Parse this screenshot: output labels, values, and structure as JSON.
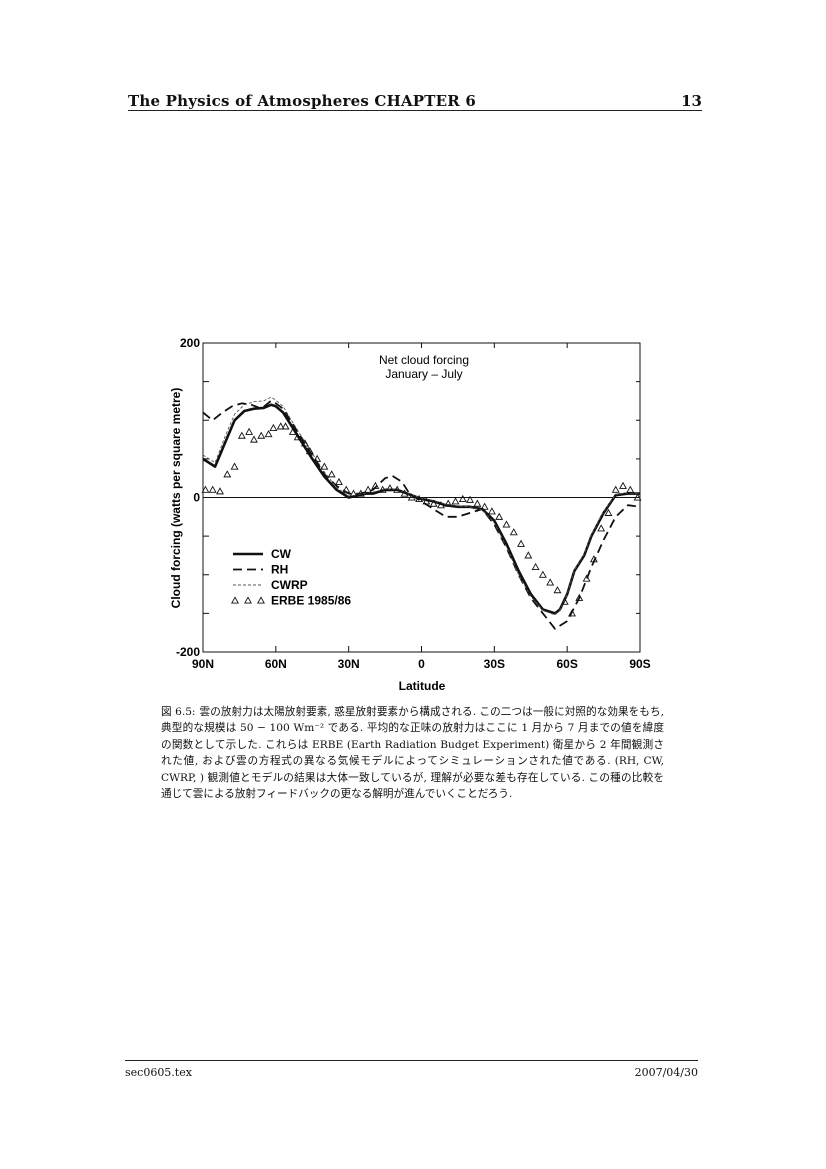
{
  "header": {
    "title": "The Physics of Atmospheres CHAPTER 6",
    "page_number": "13"
  },
  "caption": {
    "label": "図 6.5:",
    "text": "雲の放射力は太陽放射要素, 惑星放射要素から構成される. この二つは一般に対照的な効果をもち, 典型的な規模は 50 − 100 Wm⁻² である. 平均的な正味の放射力はここに 1 月から 7 月までの値を緯度の関数として示した. これらは ERBE (Earth Radiation Budget Experiment) 衛星から 2 年間観測された値, および雲の方程式の異なる気候モデルによってシミュレーションされた値である. (RH, CW, CWRP, ) 観測値とモデルの結果は大体一致しているが, 理解が必要な差も存在している. この種の比較を通じて雲による放射フィードバックの更なる解明が進んでいくことだろう."
  },
  "footer": {
    "file": "sec0605.tex",
    "date": "2007/04/30"
  },
  "chart_data": {
    "type": "line",
    "title": "Net cloud forcing",
    "subtitle": "January – July",
    "xlabel": "Latitude",
    "ylabel": "Cloud forcing (watts per square metre)",
    "xlim": [
      90,
      -90
    ],
    "ylim": [
      -200,
      200
    ],
    "x_ticks": [
      {
        "value": 90,
        "label": "90N"
      },
      {
        "value": 60,
        "label": "60N"
      },
      {
        "value": 30,
        "label": "30N"
      },
      {
        "value": 0,
        "label": "0"
      },
      {
        "value": -30,
        "label": "30S"
      },
      {
        "value": -60,
        "label": "60S"
      },
      {
        "value": -90,
        "label": "90S"
      }
    ],
    "y_ticks": [
      {
        "value": 200,
        "label": "200"
      },
      {
        "value": 0,
        "label": "0"
      },
      {
        "value": -200,
        "label": "-200"
      }
    ],
    "y_minor_ticks": [
      150,
      100,
      50,
      -50,
      -100,
      -150
    ],
    "zero_line": true,
    "grid": false,
    "legend_position": "lower-left",
    "series": [
      {
        "name": "CW",
        "style": "solid-thick",
        "x": [
          90,
          85,
          81,
          77,
          73,
          69,
          65,
          62,
          60,
          57,
          54,
          50,
          45,
          40,
          35,
          30,
          27,
          23,
          20,
          15,
          10,
          5,
          0,
          -5,
          -10,
          -15,
          -20,
          -25,
          -30,
          -35,
          -40,
          -45,
          -50,
          -55,
          -57,
          -60,
          -63,
          -67,
          -70,
          -75,
          -80,
          -85,
          -90
        ],
        "values": [
          50,
          40,
          70,
          100,
          112,
          115,
          116,
          120,
          118,
          110,
          95,
          75,
          50,
          27,
          10,
          0,
          2,
          5,
          5,
          10,
          10,
          4,
          -2,
          -5,
          -10,
          -12,
          -12,
          -15,
          -30,
          -60,
          -95,
          -125,
          -145,
          -150,
          -145,
          -125,
          -95,
          -75,
          -50,
          -20,
          3,
          5,
          5
        ]
      },
      {
        "name": "RH",
        "style": "dashed",
        "x": [
          90,
          86,
          82,
          78,
          74,
          70,
          66,
          62,
          60,
          57,
          54,
          50,
          45,
          40,
          35,
          30,
          25,
          20,
          15,
          12,
          8,
          5,
          0,
          -5,
          -10,
          -15,
          -20,
          -25,
          -30,
          -35,
          -40,
          -45,
          -50,
          -55,
          -60,
          -65,
          -70,
          -75,
          -80,
          -85,
          -90
        ],
        "values": [
          110,
          100,
          110,
          118,
          122,
          120,
          115,
          125,
          122,
          115,
          100,
          80,
          55,
          30,
          15,
          5,
          5,
          10,
          25,
          28,
          20,
          5,
          -5,
          -15,
          -25,
          -25,
          -20,
          -15,
          -35,
          -65,
          -100,
          -130,
          -150,
          -170,
          -160,
          -130,
          -90,
          -55,
          -25,
          -10,
          -12
        ]
      },
      {
        "name": "CWRP",
        "style": "dotted-thin",
        "x": [
          90,
          85,
          81,
          77,
          73,
          69,
          65,
          62,
          60,
          57,
          54,
          50,
          45,
          40,
          35,
          30,
          27,
          23,
          20,
          15,
          10,
          5,
          0,
          -5,
          -10,
          -15,
          -20,
          -25,
          -30,
          -35,
          -40,
          -45,
          -50,
          -55,
          -57,
          -60,
          -63,
          -67,
          -70,
          -75,
          -80,
          -85,
          -90
        ],
        "values": [
          55,
          45,
          78,
          108,
          120,
          124,
          125,
          130,
          126,
          118,
          102,
          82,
          57,
          33,
          13,
          2,
          3,
          6,
          7,
          11,
          11,
          5,
          -1,
          -4,
          -9,
          -11,
          -12,
          -16,
          -33,
          -64,
          -100,
          -128,
          -146,
          -152,
          -146,
          -125,
          -94,
          -73,
          -48,
          -18,
          4,
          6,
          5
        ]
      },
      {
        "name": "ERBE 1985/86",
        "style": "triangles",
        "x": [
          89,
          86,
          83,
          80,
          77,
          74,
          71,
          69,
          66,
          63,
          61,
          58,
          56,
          53,
          51,
          48,
          46,
          43,
          40,
          37,
          34,
          31,
          28,
          25,
          22,
          19,
          16,
          13,
          10,
          7,
          4,
          1,
          -2,
          -5,
          -8,
          -11,
          -14,
          -17,
          -20,
          -23,
          -26,
          -29,
          -32,
          -35,
          -38,
          -41,
          -44,
          -47,
          -50,
          -53,
          -56,
          -59,
          -62,
          -65,
          -68,
          -71,
          -74,
          -77,
          -80,
          -83,
          -86,
          -89
        ],
        "values": [
          10,
          10,
          8,
          30,
          40,
          80,
          85,
          75,
          80,
          82,
          90,
          92,
          92,
          85,
          78,
          70,
          60,
          50,
          40,
          30,
          20,
          10,
          5,
          5,
          10,
          15,
          10,
          12,
          10,
          5,
          0,
          -2,
          -5,
          -8,
          -10,
          -8,
          -5,
          -2,
          -3,
          -8,
          -12,
          -18,
          -25,
          -35,
          -45,
          -60,
          -75,
          -90,
          -100,
          -110,
          -120,
          -135,
          -150,
          -130,
          -105,
          -80,
          -40,
          -20,
          10,
          15,
          10,
          0
        ]
      }
    ]
  }
}
